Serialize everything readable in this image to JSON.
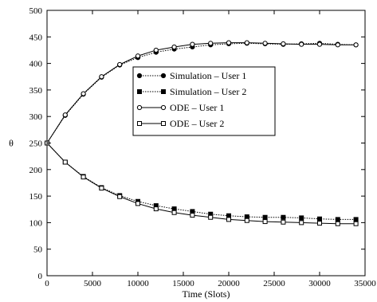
{
  "chart_data": {
    "type": "line",
    "title": "",
    "xlabel": "Time (Slots)",
    "ylabel": "θ",
    "xlim": [
      0,
      35000
    ],
    "ylim": [
      0,
      500
    ],
    "xticks": [
      0,
      5000,
      10000,
      15000,
      20000,
      25000,
      30000,
      35000
    ],
    "yticks": [
      0,
      50,
      100,
      150,
      200,
      250,
      300,
      350,
      400,
      450,
      500
    ],
    "grid": false,
    "legend_position": "center-right",
    "series": [
      {
        "name": "Simulation – User 1",
        "line": "dotted",
        "marker": "filled-circle",
        "x": [
          0,
          2000,
          4000,
          6000,
          8000,
          10000,
          12000,
          14000,
          16000,
          18000,
          20000,
          22000,
          24000,
          26000,
          28000,
          30000,
          32000,
          34000
        ],
        "y": [
          250,
          302,
          342,
          374,
          397,
          411,
          421,
          427,
          431,
          435,
          437,
          438,
          437,
          436,
          437,
          438,
          436,
          435
        ]
      },
      {
        "name": "Simulation – User 2",
        "line": "dotted",
        "marker": "filled-square",
        "x": [
          0,
          2000,
          4000,
          6000,
          8000,
          10000,
          12000,
          14000,
          16000,
          18000,
          20000,
          22000,
          24000,
          26000,
          28000,
          30000,
          32000,
          34000
        ],
        "y": [
          250,
          214,
          187,
          166,
          151,
          140,
          132,
          126,
          121,
          116,
          113,
          111,
          110,
          110,
          109,
          107,
          106,
          106
        ]
      },
      {
        "name": "ODE – User 1",
        "line": "solid",
        "marker": "open-circle",
        "x": [
          0,
          2000,
          4000,
          6000,
          8000,
          10000,
          12000,
          14000,
          16000,
          18000,
          20000,
          22000,
          24000,
          26000,
          28000,
          30000,
          32000,
          34000
        ],
        "y": [
          250,
          303,
          343,
          375,
          398,
          414,
          425,
          431,
          436,
          438,
          439,
          439,
          438,
          437,
          436,
          436,
          435,
          435
        ]
      },
      {
        "name": "ODE – User 2",
        "line": "solid",
        "marker": "open-square",
        "x": [
          0,
          2000,
          4000,
          6000,
          8000,
          10000,
          12000,
          14000,
          16000,
          18000,
          20000,
          22000,
          24000,
          26000,
          28000,
          30000,
          32000,
          34000
        ],
        "y": [
          250,
          214,
          186,
          165,
          149,
          136,
          126,
          119,
          114,
          110,
          106,
          104,
          102,
          101,
          100,
          99,
          98,
          98
        ]
      }
    ]
  }
}
